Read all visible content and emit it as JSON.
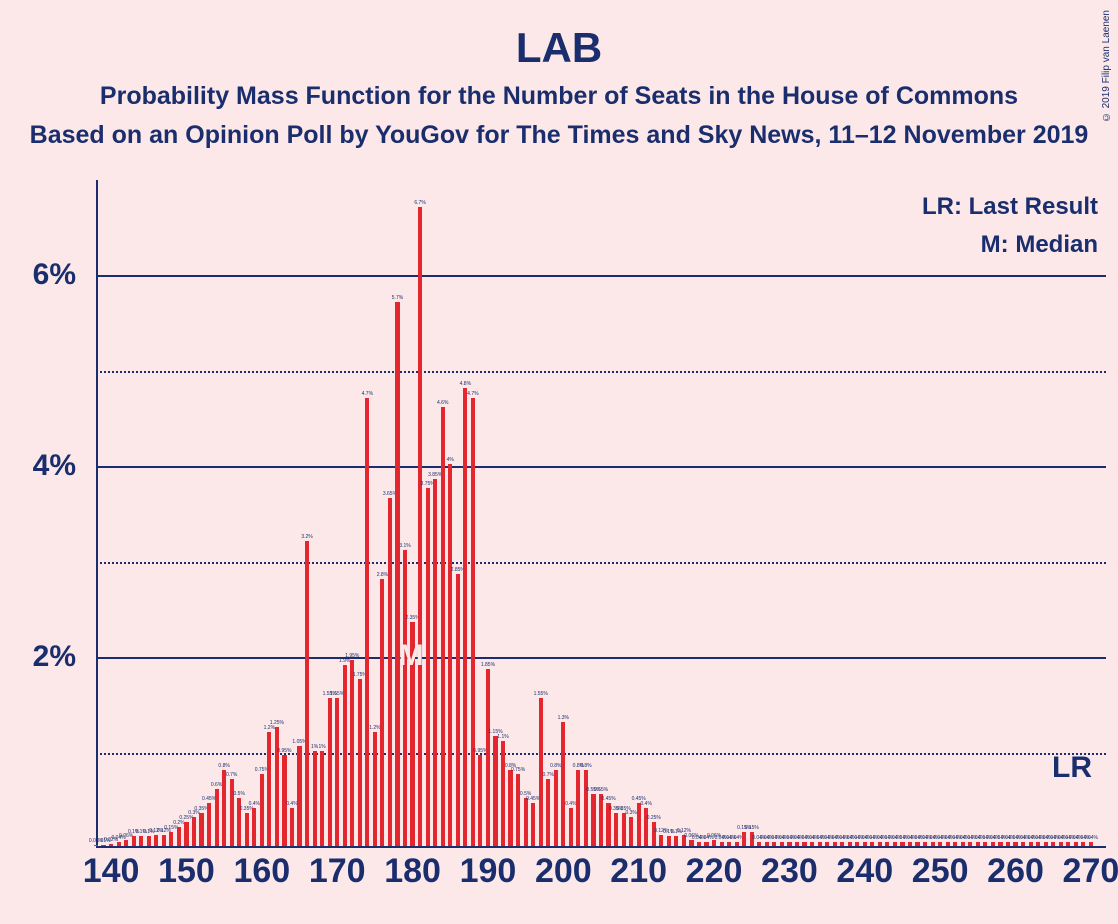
{
  "copyright": "© 2019 Filip van Laenen",
  "title": "LAB",
  "subtitle": "Probability Mass Function for the Number of Seats in the House of Commons",
  "subtitle2": "Based on an Opinion Poll by YouGov for The Times and Sky News, 11–12 November 2019",
  "legend_lr": "LR: Last Result",
  "legend_m": "M: Median",
  "lr_text": "LR",
  "m_text": "M",
  "chart": {
    "type": "bar",
    "background_color": "#fce8e8",
    "bar_color": "#e4262e",
    "axis_color": "#1a2e6e",
    "grid_major_color": "#1a2e6e",
    "grid_minor_color": "#1a2e6e",
    "text_color": "#1a2e6e",
    "ylim": [
      0,
      7
    ],
    "y_major_ticks": [
      2,
      4,
      6
    ],
    "y_minor_ticks": [
      1,
      3,
      5
    ],
    "y_tick_labels": [
      "2%",
      "4%",
      "6%"
    ],
    "xlim": [
      138,
      272
    ],
    "x_ticks": [
      140,
      150,
      160,
      170,
      180,
      190,
      200,
      210,
      220,
      230,
      240,
      250,
      260,
      270
    ],
    "x_tick_labels": [
      "140",
      "150",
      "160",
      "170",
      "180",
      "190",
      "200",
      "210",
      "220",
      "230",
      "240",
      "250",
      "260",
      "270"
    ],
    "bar_width_ratio": 0.55,
    "title_fontsize": 42,
    "subtitle_fontsize": 25,
    "axis_label_fontsize": 30,
    "x_tick_fontsize": 34,
    "median_seat": 180,
    "lr_seat": 262,
    "series": [
      {
        "x": 138,
        "y": 0.01
      },
      {
        "x": 139,
        "y": 0.01
      },
      {
        "x": 140,
        "y": 0.02
      },
      {
        "x": 141,
        "y": 0.04
      },
      {
        "x": 142,
        "y": 0.06
      },
      {
        "x": 143,
        "y": 0.1
      },
      {
        "x": 144,
        "y": 0.1
      },
      {
        "x": 145,
        "y": 0.1
      },
      {
        "x": 146,
        "y": 0.12
      },
      {
        "x": 147,
        "y": 0.12
      },
      {
        "x": 148,
        "y": 0.15
      },
      {
        "x": 149,
        "y": 0.2
      },
      {
        "x": 150,
        "y": 0.25
      },
      {
        "x": 151,
        "y": 0.3
      },
      {
        "x": 152,
        "y": 0.35
      },
      {
        "x": 153,
        "y": 0.45
      },
      {
        "x": 154,
        "y": 0.6
      },
      {
        "x": 155,
        "y": 0.8
      },
      {
        "x": 156,
        "y": 0.7
      },
      {
        "x": 157,
        "y": 0.5
      },
      {
        "x": 158,
        "y": 0.35
      },
      {
        "x": 159,
        "y": 0.4
      },
      {
        "x": 160,
        "y": 0.75
      },
      {
        "x": 161,
        "y": 1.2
      },
      {
        "x": 162,
        "y": 1.25
      },
      {
        "x": 163,
        "y": 0.95
      },
      {
        "x": 164,
        "y": 0.4
      },
      {
        "x": 165,
        "y": 1.05
      },
      {
        "x": 166,
        "y": 3.2
      },
      {
        "x": 167,
        "y": 1.0
      },
      {
        "x": 168,
        "y": 1.0
      },
      {
        "x": 169,
        "y": 1.55
      },
      {
        "x": 170,
        "y": 1.55
      },
      {
        "x": 171,
        "y": 1.9
      },
      {
        "x": 172,
        "y": 1.95
      },
      {
        "x": 173,
        "y": 1.75
      },
      {
        "x": 174,
        "y": 4.7
      },
      {
        "x": 175,
        "y": 1.2
      },
      {
        "x": 176,
        "y": 2.8
      },
      {
        "x": 177,
        "y": 3.65
      },
      {
        "x": 178,
        "y": 5.7
      },
      {
        "x": 179,
        "y": 3.1
      },
      {
        "x": 180,
        "y": 2.35
      },
      {
        "x": 181,
        "y": 6.7
      },
      {
        "x": 182,
        "y": 3.75
      },
      {
        "x": 183,
        "y": 3.85
      },
      {
        "x": 184,
        "y": 4.6
      },
      {
        "x": 185,
        "y": 4.0
      },
      {
        "x": 186,
        "y": 2.85
      },
      {
        "x": 187,
        "y": 4.8
      },
      {
        "x": 188,
        "y": 4.7
      },
      {
        "x": 189,
        "y": 0.95
      },
      {
        "x": 190,
        "y": 1.85
      },
      {
        "x": 191,
        "y": 1.15
      },
      {
        "x": 192,
        "y": 1.1
      },
      {
        "x": 193,
        "y": 0.8
      },
      {
        "x": 194,
        "y": 0.75
      },
      {
        "x": 195,
        "y": 0.5
      },
      {
        "x": 196,
        "y": 0.45
      },
      {
        "x": 197,
        "y": 1.55
      },
      {
        "x": 198,
        "y": 0.7
      },
      {
        "x": 199,
        "y": 0.8
      },
      {
        "x": 200,
        "y": 1.3
      },
      {
        "x": 201,
        "y": 0.4
      },
      {
        "x": 202,
        "y": 0.8
      },
      {
        "x": 203,
        "y": 0.8
      },
      {
        "x": 204,
        "y": 0.55
      },
      {
        "x": 205,
        "y": 0.55
      },
      {
        "x": 206,
        "y": 0.45
      },
      {
        "x": 207,
        "y": 0.35
      },
      {
        "x": 208,
        "y": 0.35
      },
      {
        "x": 209,
        "y": 0.3
      },
      {
        "x": 210,
        "y": 0.45
      },
      {
        "x": 211,
        "y": 0.4
      },
      {
        "x": 212,
        "y": 0.25
      },
      {
        "x": 213,
        "y": 0.12
      },
      {
        "x": 214,
        "y": 0.1
      },
      {
        "x": 215,
        "y": 0.1
      },
      {
        "x": 216,
        "y": 0.12
      },
      {
        "x": 217,
        "y": 0.06
      },
      {
        "x": 218,
        "y": 0.04
      },
      {
        "x": 219,
        "y": 0.04
      },
      {
        "x": 220,
        "y": 0.06
      },
      {
        "x": 221,
        "y": 0.04
      },
      {
        "x": 222,
        "y": 0.04
      },
      {
        "x": 223,
        "y": 0.04
      },
      {
        "x": 224,
        "y": 0.15
      },
      {
        "x": 225,
        "y": 0.15
      },
      {
        "x": 226,
        "y": 0.04
      },
      {
        "x": 227,
        "y": 0.04
      },
      {
        "x": 228,
        "y": 0.04
      },
      {
        "x": 229,
        "y": 0.04
      },
      {
        "x": 230,
        "y": 0.04
      },
      {
        "x": 231,
        "y": 0.04
      },
      {
        "x": 232,
        "y": 0.04
      },
      {
        "x": 233,
        "y": 0.04
      },
      {
        "x": 234,
        "y": 0.04
      },
      {
        "x": 235,
        "y": 0.04
      },
      {
        "x": 236,
        "y": 0.04
      },
      {
        "x": 237,
        "y": 0.04
      },
      {
        "x": 238,
        "y": 0.04
      },
      {
        "x": 239,
        "y": 0.04
      },
      {
        "x": 240,
        "y": 0.04
      },
      {
        "x": 241,
        "y": 0.04
      },
      {
        "x": 242,
        "y": 0.04
      },
      {
        "x": 243,
        "y": 0.04
      },
      {
        "x": 244,
        "y": 0.04
      },
      {
        "x": 245,
        "y": 0.04
      },
      {
        "x": 246,
        "y": 0.04
      },
      {
        "x": 247,
        "y": 0.04
      },
      {
        "x": 248,
        "y": 0.04
      },
      {
        "x": 249,
        "y": 0.04
      },
      {
        "x": 250,
        "y": 0.04
      },
      {
        "x": 251,
        "y": 0.04
      },
      {
        "x": 252,
        "y": 0.04
      },
      {
        "x": 253,
        "y": 0.04
      },
      {
        "x": 254,
        "y": 0.04
      },
      {
        "x": 255,
        "y": 0.04
      },
      {
        "x": 256,
        "y": 0.04
      },
      {
        "x": 257,
        "y": 0.04
      },
      {
        "x": 258,
        "y": 0.04
      },
      {
        "x": 259,
        "y": 0.04
      },
      {
        "x": 260,
        "y": 0.04
      },
      {
        "x": 261,
        "y": 0.04
      },
      {
        "x": 262,
        "y": 0.04
      },
      {
        "x": 263,
        "y": 0.04
      },
      {
        "x": 264,
        "y": 0.04
      },
      {
        "x": 265,
        "y": 0.04
      },
      {
        "x": 266,
        "y": 0.04
      },
      {
        "x": 267,
        "y": 0.04
      },
      {
        "x": 268,
        "y": 0.04
      },
      {
        "x": 269,
        "y": 0.04
      },
      {
        "x": 270,
        "y": 0.04
      }
    ]
  }
}
